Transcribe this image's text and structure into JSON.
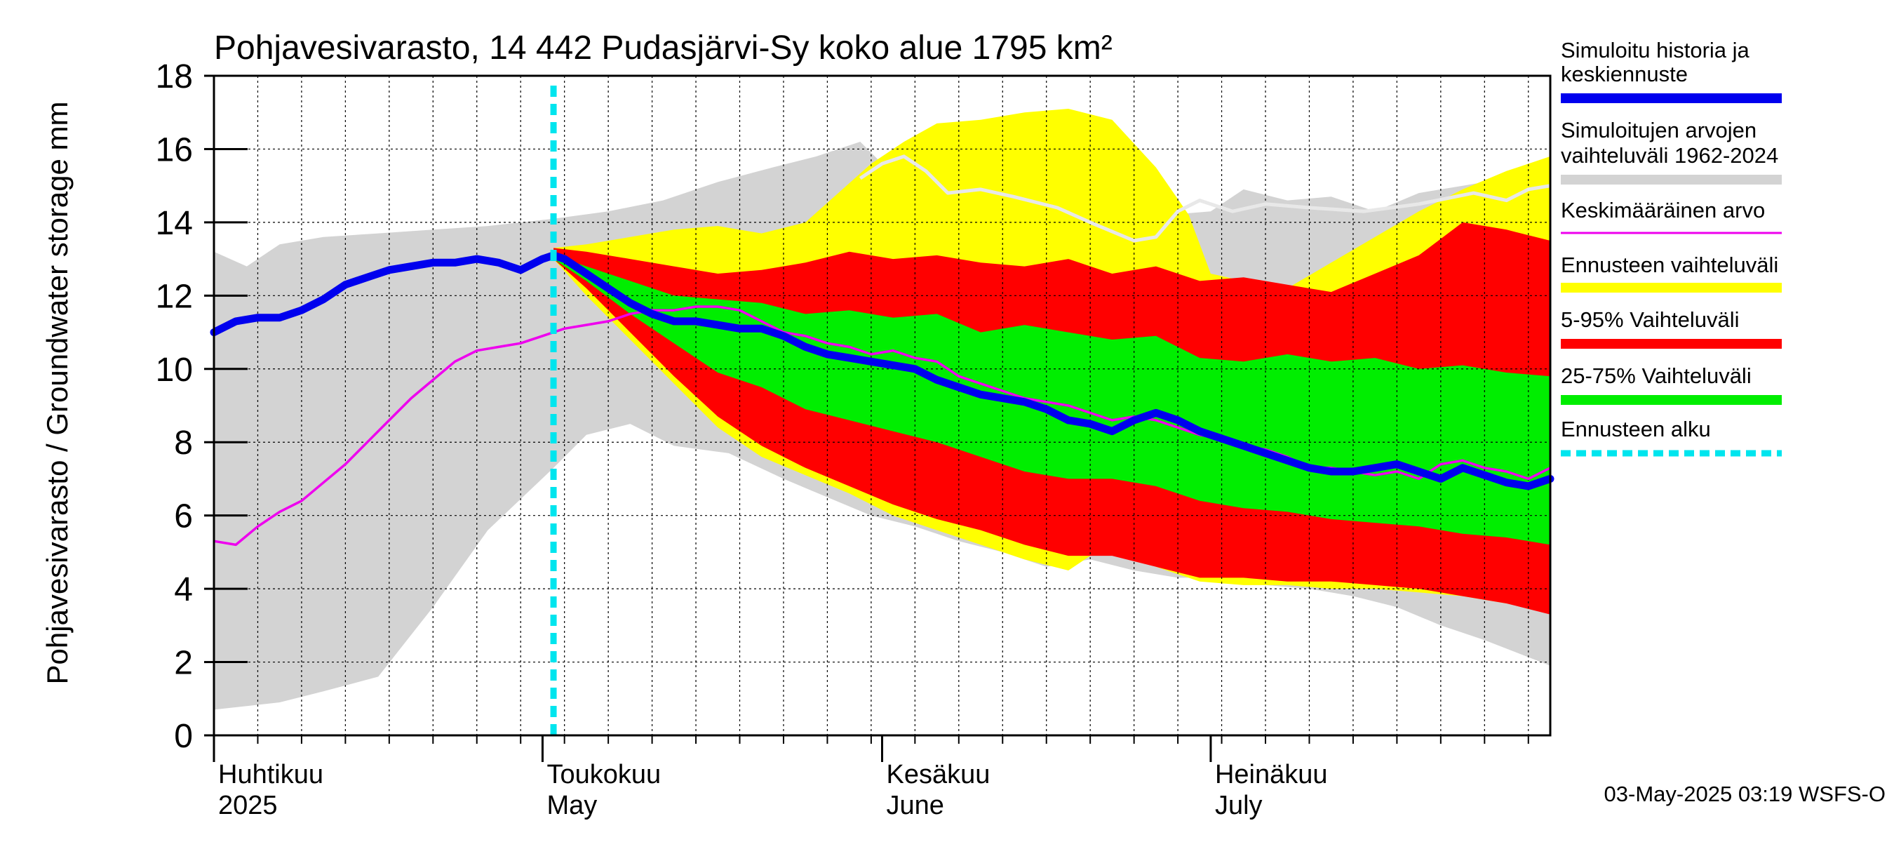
{
  "chart_data": {
    "type": "area",
    "title": "Pohjavesivarasto, 14 442 Pudasjärvi-Sy koko alue 1795 km²",
    "ylabel": "Pohjavesivarasto / Groundwater storage   mm",
    "ylim": [
      0,
      18
    ],
    "yticks": [
      0,
      2,
      4,
      6,
      8,
      10,
      12,
      14,
      16,
      18
    ],
    "x_day_range": [
      0,
      122
    ],
    "grid": true,
    "month_labels": [
      {
        "day": 0,
        "fi": "Huhtikuu",
        "en": "2025"
      },
      {
        "day": 30,
        "fi": "Toukokuu",
        "en": "May"
      },
      {
        "day": 61,
        "fi": "Kesäkuu",
        "en": "June"
      },
      {
        "day": 91,
        "fi": "Heinäkuu",
        "en": "July"
      }
    ],
    "forecast_start_day": 31,
    "timestamp": "03-May-2025 03:19 WSFS-O",
    "colors": {
      "history": "#0000ee",
      "hist_range": "#d3d3d3",
      "hist_median": "#e8e8e8",
      "mean": "#ee00ee",
      "forecast_range": "#ffff00",
      "p5_95": "#ff0000",
      "p25_75": "#00ee00",
      "forecast_start": "#00e5ee"
    },
    "legend": [
      {
        "label": "Simuloitu historia ja",
        "label2": "keskiennuste",
        "color": "#0000ee",
        "style": "thick"
      },
      {
        "label": "Simuloitujen arvojen",
        "label2": "vaihteluväli 1962-2024",
        "color": "#d3d3d3",
        "style": "thick"
      },
      {
        "label": "Keskimääräinen arvo",
        "label2": "",
        "color": "#ee00ee",
        "style": "thin"
      },
      {
        "label": "Ennusteen vaihteluväli",
        "label2": "",
        "color": "#ffff00",
        "style": "thick"
      },
      {
        "label": "5-95% Vaihteluväli",
        "label2": "",
        "color": "#ff0000",
        "style": "thick"
      },
      {
        "label": "25-75% Vaihteluväli",
        "label2": "",
        "color": "#00ee00",
        "style": "thick"
      },
      {
        "label": "Ennusteen alku",
        "label2": "",
        "color": "#00e5ee",
        "style": "dashed"
      }
    ],
    "series": [
      {
        "name": "Simuloitujen arvojen vaihteluväli 1962-2024 (max)",
        "x": [
          0,
          3,
          6,
          10,
          15,
          20,
          25,
          31,
          36,
          41,
          46,
          51,
          55,
          59,
          61,
          63,
          67,
          71,
          75,
          79,
          83,
          87,
          91,
          94,
          98,
          102,
          106,
          110,
          114,
          118,
          122
        ],
        "values": [
          13.2,
          12.8,
          13.4,
          13.6,
          13.7,
          13.8,
          13.9,
          14.1,
          14.3,
          14.6,
          15.1,
          15.5,
          15.8,
          16.2,
          15.6,
          15.8,
          15.3,
          14.9,
          14.6,
          14.0,
          13.8,
          14.2,
          14.3,
          14.9,
          14.6,
          14.7,
          14.3,
          14.8,
          15.0,
          15.2,
          15.3
        ]
      },
      {
        "name": "Simuloitujen arvojen vaihteluväli 1962-2024 (min)",
        "x": [
          0,
          3,
          6,
          10,
          15,
          20,
          25,
          31,
          34,
          38,
          42,
          47,
          52,
          56,
          60,
          64,
          68,
          72,
          76,
          80,
          84,
          88,
          92,
          96,
          100,
          104,
          108,
          112,
          116,
          122
        ],
        "values": [
          0.7,
          0.8,
          0.9,
          1.2,
          1.6,
          3.5,
          5.6,
          7.3,
          8.2,
          8.5,
          7.9,
          7.7,
          7.0,
          6.5,
          6.0,
          5.7,
          5.3,
          5.0,
          4.6,
          4.8,
          4.5,
          4.3,
          4.3,
          4.1,
          4.0,
          3.8,
          3.5,
          3.0,
          2.6,
          1.9
        ]
      },
      {
        "name": "Simuloitujen arvojen mediaani",
        "x": [
          59,
          61,
          63,
          65,
          67,
          70,
          73,
          77,
          80,
          84,
          86,
          88,
          90,
          93,
          96,
          100,
          105,
          110,
          115,
          118,
          120,
          122
        ],
        "values": [
          15.2,
          15.6,
          15.8,
          15.4,
          14.8,
          14.9,
          14.7,
          14.4,
          14.0,
          13.5,
          13.6,
          14.3,
          14.6,
          14.3,
          14.5,
          14.4,
          14.3,
          14.5,
          14.8,
          14.6,
          14.9,
          15.0
        ]
      },
      {
        "name": "Ennusteen vaihteluväli (max)",
        "x": [
          31,
          34,
          38,
          42,
          46,
          50,
          54,
          57,
          60,
          63,
          66,
          70,
          74,
          78,
          82,
          86,
          89,
          91,
          94,
          98,
          102,
          106,
          110,
          114,
          118,
          122
        ],
        "values": [
          13.3,
          13.4,
          13.6,
          13.8,
          13.9,
          13.7,
          14.0,
          14.8,
          15.6,
          16.2,
          16.7,
          16.8,
          17.0,
          17.1,
          16.8,
          15.5,
          14.2,
          12.6,
          12.4,
          12.2,
          12.9,
          13.6,
          14.3,
          14.9,
          15.4,
          15.8
        ]
      },
      {
        "name": "Ennusteen vaihteluväli (min)",
        "x": [
          31,
          34,
          38,
          42,
          46,
          50,
          54,
          58,
          62,
          66,
          70,
          74,
          78,
          80,
          82,
          86,
          90,
          94,
          98,
          102,
          106,
          110,
          114,
          118,
          122
        ],
        "values": [
          13.0,
          12.0,
          10.8,
          9.6,
          8.4,
          7.6,
          7.1,
          6.6,
          6.0,
          5.6,
          5.2,
          4.8,
          4.5,
          4.9,
          5.0,
          4.6,
          4.2,
          4.1,
          4.1,
          4.0,
          4.0,
          3.9,
          3.8,
          3.6,
          3.4
        ]
      },
      {
        "name": "5-95% Vaihteluväli (max)",
        "x": [
          31,
          34,
          38,
          42,
          46,
          50,
          54,
          58,
          62,
          66,
          70,
          74,
          78,
          82,
          86,
          90,
          94,
          98,
          102,
          106,
          110,
          114,
          118,
          122
        ],
        "values": [
          13.3,
          13.2,
          13.0,
          12.8,
          12.6,
          12.7,
          12.9,
          13.2,
          13.0,
          13.1,
          12.9,
          12.8,
          13.0,
          12.6,
          12.8,
          12.4,
          12.5,
          12.3,
          12.1,
          12.6,
          13.1,
          14.0,
          13.8,
          13.5
        ]
      },
      {
        "name": "5-95% Vaihteluväli (min)",
        "x": [
          31,
          34,
          38,
          42,
          46,
          50,
          54,
          58,
          62,
          66,
          70,
          74,
          78,
          82,
          86,
          90,
          94,
          98,
          102,
          106,
          110,
          114,
          118,
          122
        ],
        "values": [
          13.0,
          12.2,
          11.0,
          9.8,
          8.7,
          7.9,
          7.3,
          6.8,
          6.3,
          5.9,
          5.6,
          5.2,
          4.9,
          4.9,
          4.6,
          4.3,
          4.3,
          4.2,
          4.2,
          4.1,
          4.0,
          3.8,
          3.6,
          3.3
        ]
      },
      {
        "name": "25-75% Vaihteluväli (max)",
        "x": [
          31,
          34,
          38,
          42,
          46,
          50,
          54,
          58,
          62,
          66,
          70,
          74,
          78,
          82,
          86,
          90,
          94,
          98,
          102,
          106,
          110,
          114,
          118,
          122
        ],
        "values": [
          13.1,
          12.8,
          12.4,
          12.0,
          11.9,
          11.8,
          11.5,
          11.6,
          11.4,
          11.5,
          11.0,
          11.2,
          11.0,
          10.8,
          10.9,
          10.3,
          10.2,
          10.4,
          10.2,
          10.3,
          10.0,
          10.1,
          9.9,
          9.8
        ]
      },
      {
        "name": "25-75% Vaihteluväli (min)",
        "x": [
          31,
          34,
          38,
          42,
          46,
          50,
          54,
          58,
          62,
          66,
          70,
          74,
          78,
          82,
          86,
          90,
          94,
          98,
          102,
          106,
          110,
          114,
          118,
          122
        ],
        "values": [
          13.0,
          12.4,
          11.5,
          10.7,
          9.9,
          9.5,
          8.9,
          8.6,
          8.3,
          8.0,
          7.6,
          7.2,
          7.0,
          7.0,
          6.8,
          6.4,
          6.2,
          6.1,
          5.9,
          5.8,
          5.7,
          5.5,
          5.4,
          5.2
        ]
      },
      {
        "name": "Keskimääräinen arvo",
        "x": [
          0,
          2,
          4,
          6,
          8,
          10,
          12,
          14,
          16,
          18,
          20,
          22,
          24,
          26,
          28,
          30,
          32,
          34,
          36,
          38,
          40,
          42,
          44,
          46,
          48,
          50,
          52,
          54,
          56,
          58,
          60,
          62,
          64,
          66,
          68,
          70,
          72,
          74,
          76,
          78,
          80,
          82,
          84,
          86,
          88,
          90,
          92,
          94,
          96,
          98,
          100,
          102,
          104,
          106,
          108,
          110,
          112,
          114,
          116,
          118,
          120,
          122
        ],
        "values": [
          5.3,
          5.2,
          5.7,
          6.1,
          6.4,
          6.9,
          7.4,
          8.0,
          8.6,
          9.2,
          9.7,
          10.2,
          10.5,
          10.6,
          10.7,
          10.9,
          11.1,
          11.2,
          11.3,
          11.5,
          11.6,
          11.6,
          11.7,
          11.7,
          11.6,
          11.3,
          11.0,
          10.9,
          10.7,
          10.6,
          10.4,
          10.5,
          10.3,
          10.2,
          9.8,
          9.6,
          9.4,
          9.2,
          9.1,
          9.0,
          8.8,
          8.6,
          8.7,
          8.6,
          8.4,
          8.2,
          8.1,
          7.9,
          7.8,
          7.6,
          7.3,
          7.3,
          7.2,
          7.1,
          7.2,
          7.0,
          7.4,
          7.5,
          7.3,
          7.2,
          7.0,
          7.3
        ]
      },
      {
        "name": "Simuloitu historia ja keskiennuste",
        "x": [
          0,
          2,
          4,
          6,
          8,
          10,
          12,
          14,
          16,
          18,
          20,
          22,
          24,
          26,
          28,
          30,
          31,
          32,
          34,
          36,
          38,
          40,
          42,
          44,
          46,
          48,
          50,
          52,
          54,
          56,
          58,
          60,
          62,
          64,
          66,
          68,
          70,
          72,
          74,
          76,
          78,
          80,
          82,
          84,
          86,
          88,
          90,
          92,
          94,
          96,
          98,
          100,
          102,
          104,
          106,
          108,
          110,
          112,
          114,
          116,
          118,
          120,
          122
        ],
        "values": [
          11.0,
          11.3,
          11.4,
          11.4,
          11.6,
          11.9,
          12.3,
          12.5,
          12.7,
          12.8,
          12.9,
          12.9,
          13.0,
          12.9,
          12.7,
          13.0,
          13.1,
          13.0,
          12.6,
          12.2,
          11.8,
          11.5,
          11.3,
          11.3,
          11.2,
          11.1,
          11.1,
          10.9,
          10.6,
          10.4,
          10.3,
          10.2,
          10.1,
          10.0,
          9.7,
          9.5,
          9.3,
          9.2,
          9.1,
          8.9,
          8.6,
          8.5,
          8.3,
          8.6,
          8.8,
          8.6,
          8.3,
          8.1,
          7.9,
          7.7,
          7.5,
          7.3,
          7.2,
          7.2,
          7.3,
          7.4,
          7.2,
          7.0,
          7.3,
          7.1,
          6.9,
          6.8,
          7.0
        ]
      }
    ]
  }
}
